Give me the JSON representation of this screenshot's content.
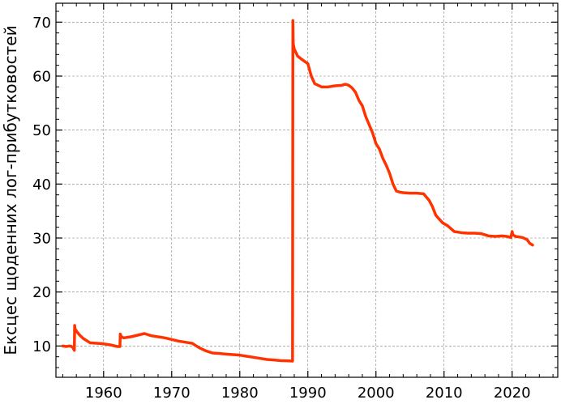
{
  "chart_data": {
    "type": "line",
    "title": "",
    "xlabel": "",
    "ylabel": "Ексцес щоденних лог-прибутковостей",
    "xlim": [
      1953,
      2026.7
    ],
    "ylim": [
      4.2,
      73.5
    ],
    "xticks": [
      1960,
      1970,
      1980,
      1990,
      2000,
      2010,
      2020
    ],
    "yticks": [
      10,
      20,
      30,
      40,
      50,
      60,
      70
    ],
    "grid": true,
    "legend": "none",
    "series": [
      {
        "color": "#ff3300",
        "x": [
          1954.0,
          1954.5,
          1955.0,
          1955.3,
          1955.5,
          1955.7,
          1955.75,
          1955.8,
          1956.1,
          1956.5,
          1957.0,
          1957.5,
          1958.0,
          1960.0,
          1961.0,
          1962.0,
          1962.4,
          1962.45,
          1962.6,
          1963.0,
          1964.0,
          1965.0,
          1966.0,
          1967.0,
          1968.0,
          1969.0,
          1970.0,
          1971.0,
          1972.0,
          1973.0,
          1974.0,
          1975.0,
          1976.0,
          1977.0,
          1978.0,
          1979.0,
          1980.0,
          1981.0,
          1982.0,
          1983.0,
          1984.0,
          1985.0,
          1986.0,
          1987.0,
          1987.75,
          1987.8,
          1987.85,
          1988.0,
          1988.5,
          1989.0,
          1990.0,
          1990.5,
          1991.0,
          1992.0,
          1993.0,
          1994.0,
          1995.0,
          1995.5,
          1996.0,
          1996.5,
          1997.0,
          1997.5,
          1998.0,
          1998.5,
          1999.0,
          1999.5,
          2000.0,
          2000.5,
          2001.0,
          2001.5,
          2002.0,
          2002.5,
          2003.0,
          2003.5,
          2004.0,
          2005.0,
          2006.0,
          2007.0,
          2007.8,
          2008.3,
          2008.8,
          2009.3,
          2009.8,
          2010.5,
          2011.5,
          2012.5,
          2013.5,
          2014.5,
          2015.5,
          2016.5,
          2017.5,
          2018.5,
          2019.2,
          2019.8,
          2020.0,
          2020.1,
          2020.5,
          2021.5,
          2022.2,
          2022.6,
          2023.0
        ],
        "y": [
          10.0,
          9.9,
          10.0,
          9.9,
          9.7,
          9.2,
          13.8,
          13.2,
          12.6,
          12.0,
          11.4,
          11.0,
          10.6,
          10.4,
          10.2,
          9.9,
          9.9,
          12.2,
          11.7,
          11.5,
          11.7,
          12.0,
          12.3,
          11.9,
          11.7,
          11.5,
          11.2,
          10.9,
          10.7,
          10.5,
          9.7,
          9.1,
          8.7,
          8.6,
          8.5,
          8.4,
          8.3,
          8.1,
          7.9,
          7.7,
          7.5,
          7.4,
          7.3,
          7.25,
          7.2,
          70.3,
          66.0,
          65.0,
          63.7,
          63.2,
          62.3,
          60.0,
          58.6,
          58.0,
          58.0,
          58.2,
          58.3,
          58.5,
          58.3,
          57.8,
          57.0,
          55.5,
          54.5,
          52.5,
          51.0,
          49.5,
          47.5,
          46.5,
          44.8,
          43.5,
          42.0,
          40.0,
          38.7,
          38.5,
          38.4,
          38.3,
          38.3,
          38.2,
          37.0,
          35.8,
          34.2,
          33.5,
          32.8,
          32.3,
          31.2,
          31.0,
          30.9,
          30.9,
          30.8,
          30.4,
          30.3,
          30.4,
          30.3,
          30.1,
          31.2,
          30.6,
          30.3,
          30.1,
          29.7,
          29.0,
          28.7
        ]
      }
    ]
  }
}
